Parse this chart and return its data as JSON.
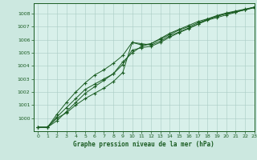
{
  "title": "Graphe pression niveau de la mer (hPa)",
  "bg_color": "#cce8e0",
  "plot_bg": "#d8f0ea",
  "grid_color": "#a8ccc4",
  "line_color": "#1a5c22",
  "marker_color": "#1a5c22",
  "xlim": [
    -0.5,
    23
  ],
  "ylim": [
    999.0,
    1008.8
  ],
  "yticks": [
    1000,
    1001,
    1002,
    1003,
    1004,
    1005,
    1006,
    1007,
    1008
  ],
  "xticks": [
    0,
    1,
    2,
    3,
    4,
    5,
    6,
    7,
    8,
    9,
    10,
    11,
    12,
    13,
    14,
    15,
    16,
    17,
    18,
    19,
    20,
    21,
    22,
    23
  ],
  "series": [
    [
      999.3,
      999.3,
      1000.0,
      1000.4,
      1001.0,
      1001.5,
      1001.9,
      1002.3,
      1002.8,
      1003.5,
      1005.8,
      1005.7,
      1005.6,
      1005.9,
      1006.3,
      1006.6,
      1006.9,
      1007.2,
      1007.5,
      1007.7,
      1007.9,
      1008.1,
      1008.3,
      1008.5
    ],
    [
      999.3,
      999.3,
      1000.1,
      1000.8,
      1001.5,
      1002.2,
      1002.6,
      1003.0,
      1003.4,
      1004.3,
      1005.0,
      1005.5,
      1005.7,
      1006.1,
      1006.5,
      1006.8,
      1007.1,
      1007.4,
      1007.6,
      1007.85,
      1008.05,
      1008.2,
      1008.35,
      1008.5
    ],
    [
      999.3,
      999.3,
      1000.3,
      1001.2,
      1002.0,
      1002.7,
      1003.3,
      1003.7,
      1004.2,
      1004.8,
      1005.8,
      1005.6,
      1005.7,
      1006.05,
      1006.4,
      1006.75,
      1007.0,
      1007.3,
      1007.55,
      1007.8,
      1008.0,
      1008.15,
      1008.3,
      1008.5
    ],
    [
      999.3,
      999.3,
      999.8,
      1000.5,
      1001.2,
      1001.9,
      1002.4,
      1002.9,
      1003.4,
      1004.1,
      1005.2,
      1005.4,
      1005.5,
      1005.8,
      1006.2,
      1006.55,
      1006.85,
      1007.2,
      1007.55,
      1007.8,
      1008.0,
      1008.15,
      1008.3,
      1008.45
    ]
  ]
}
